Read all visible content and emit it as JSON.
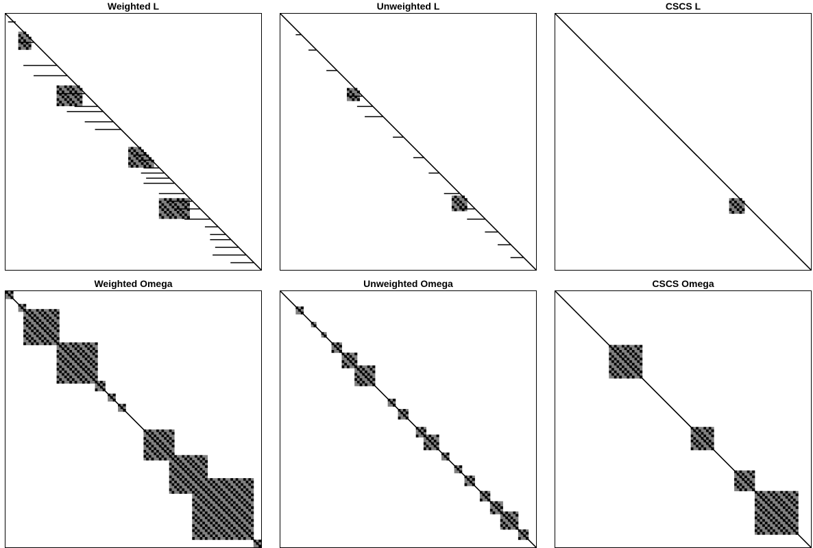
{
  "figure": {
    "panels": [
      {
        "id": "weighted-l",
        "title": "Weighted L"
      },
      {
        "id": "unweighted-l",
        "title": "Unweighted L"
      },
      {
        "id": "cscs-l",
        "title": "CSCS L"
      },
      {
        "id": "weighted-omega",
        "title": "Weighted Omega"
      },
      {
        "id": "unweighted-omega",
        "title": "Unweighted Omega"
      },
      {
        "id": "cscs-omega",
        "title": "CSCS Omega"
      }
    ]
  },
  "chart_data": [
    {
      "type": "heatmap",
      "subtype": "sparsity-pattern",
      "matrix": "lower-triangular",
      "title": "Weighted L",
      "dimension": 100,
      "colors": {
        "nonzero": "#000000",
        "mid": "#808080",
        "zero": "#ffffff"
      },
      "diagonal": true,
      "row_bands": [
        [
          3,
          1,
          3
        ],
        [
          11,
          5,
          10
        ],
        [
          20,
          7,
          19
        ],
        [
          24,
          11,
          23
        ],
        [
          31,
          20,
          30
        ],
        [
          36,
          27,
          35
        ],
        [
          38,
          24,
          37
        ],
        [
          42,
          31,
          41
        ],
        [
          45,
          35,
          44
        ],
        [
          55,
          50,
          54
        ],
        [
          57,
          52,
          56
        ],
        [
          60,
          54,
          59
        ],
        [
          62,
          53,
          61
        ],
        [
          64,
          55,
          63
        ],
        [
          66,
          54,
          65
        ],
        [
          70,
          60,
          69
        ],
        [
          73,
          63,
          72
        ],
        [
          76,
          67,
          75
        ],
        [
          80,
          70,
          79
        ],
        [
          83,
          78,
          82
        ],
        [
          86,
          80,
          85
        ],
        [
          88,
          80,
          87
        ],
        [
          91,
          82,
          90
        ],
        [
          94,
          81,
          93
        ],
        [
          97,
          88,
          96
        ]
      ],
      "blocks": [
        [
          7,
          14,
          5,
          10
        ],
        [
          28,
          36,
          20,
          30
        ],
        [
          52,
          60,
          48,
          58
        ],
        [
          72,
          80,
          60,
          72
        ]
      ],
      "axes": "none",
      "grid": false,
      "legend": "none"
    },
    {
      "type": "heatmap",
      "subtype": "sparsity-pattern",
      "matrix": "lower-triangular",
      "title": "Unweighted L",
      "dimension": 100,
      "colors": {
        "nonzero": "#000000",
        "mid": "#808080",
        "zero": "#ffffff"
      },
      "diagonal": true,
      "row_bands": [
        [
          8,
          6,
          7
        ],
        [
          14,
          11,
          13
        ],
        [
          22,
          18,
          21
        ],
        [
          32,
          26,
          31
        ],
        [
          36,
          30,
          35
        ],
        [
          40,
          33,
          39
        ],
        [
          48,
          44,
          47
        ],
        [
          56,
          52,
          55
        ],
        [
          62,
          58,
          61
        ],
        [
          70,
          64,
          69
        ],
        [
          76,
          70,
          75
        ],
        [
          80,
          73,
          79
        ],
        [
          85,
          80,
          84
        ],
        [
          90,
          85,
          89
        ],
        [
          95,
          90,
          94
        ]
      ],
      "blocks": [
        [
          29,
          34,
          26,
          31
        ],
        [
          71,
          77,
          67,
          73
        ]
      ],
      "axes": "none",
      "grid": false,
      "legend": "none"
    },
    {
      "type": "heatmap",
      "subtype": "sparsity-pattern",
      "matrix": "lower-triangular",
      "title": "CSCS L",
      "dimension": 100,
      "colors": {
        "nonzero": "#000000",
        "mid": "#808080",
        "zero": "#ffffff"
      },
      "diagonal": true,
      "row_bands": [],
      "blocks": [
        [
          72,
          78,
          68,
          74
        ]
      ],
      "axes": "none",
      "grid": false,
      "legend": "none"
    },
    {
      "type": "heatmap",
      "subtype": "sparsity-pattern",
      "matrix": "symmetric",
      "title": "Weighted Omega",
      "dimension": 100,
      "colors": {
        "nonzero": "#000000",
        "mid": "#808080",
        "zero": "#ffffff"
      },
      "diagonal": true,
      "row_bands": [],
      "blocks": [
        [
          0,
          3,
          0,
          3
        ],
        [
          5,
          8,
          5,
          8
        ],
        [
          7,
          21,
          7,
          21
        ],
        [
          20,
          36,
          20,
          36
        ],
        [
          35,
          39,
          35,
          39
        ],
        [
          40,
          43,
          40,
          43
        ],
        [
          44,
          47,
          44,
          47
        ],
        [
          54,
          66,
          54,
          66
        ],
        [
          64,
          79,
          64,
          79
        ],
        [
          73,
          97,
          73,
          97
        ],
        [
          97,
          100,
          97,
          100
        ]
      ],
      "axes": "none",
      "grid": false,
      "legend": "none"
    },
    {
      "type": "heatmap",
      "subtype": "sparsity-pattern",
      "matrix": "symmetric",
      "title": "Unweighted Omega",
      "dimension": 100,
      "colors": {
        "nonzero": "#000000",
        "mid": "#808080",
        "zero": "#ffffff"
      },
      "diagonal": true,
      "row_bands": [],
      "blocks": [
        [
          6,
          9,
          6,
          9
        ],
        [
          12,
          14,
          12,
          14
        ],
        [
          16,
          18,
          16,
          18
        ],
        [
          20,
          24,
          20,
          24
        ],
        [
          24,
          30,
          24,
          30
        ],
        [
          29,
          37,
          29,
          37
        ],
        [
          42,
          45,
          42,
          45
        ],
        [
          46,
          50,
          46,
          50
        ],
        [
          53,
          57,
          53,
          57
        ],
        [
          56,
          62,
          56,
          62
        ],
        [
          63,
          66,
          63,
          66
        ],
        [
          68,
          71,
          68,
          71
        ],
        [
          72,
          76,
          72,
          76
        ],
        [
          78,
          82,
          78,
          82
        ],
        [
          82,
          87,
          82,
          87
        ],
        [
          86,
          93,
          86,
          93
        ],
        [
          93,
          97,
          93,
          97
        ]
      ],
      "axes": "none",
      "grid": false,
      "legend": "none"
    },
    {
      "type": "heatmap",
      "subtype": "sparsity-pattern",
      "matrix": "symmetric",
      "title": "CSCS Omega",
      "dimension": 100,
      "colors": {
        "nonzero": "#000000",
        "mid": "#808080",
        "zero": "#ffffff"
      },
      "diagonal": true,
      "row_bands": [],
      "blocks": [
        [
          21,
          34,
          21,
          34
        ],
        [
          53,
          62,
          53,
          62
        ],
        [
          70,
          78,
          70,
          78
        ],
        [
          78,
          95,
          78,
          95
        ]
      ],
      "axes": "none",
      "grid": false,
      "legend": "none"
    }
  ]
}
